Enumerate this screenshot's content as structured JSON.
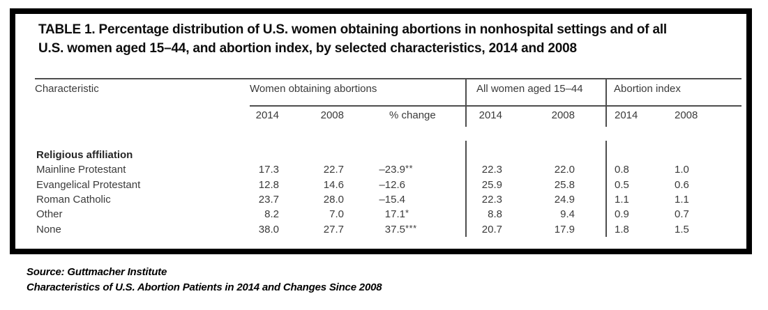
{
  "panel": {
    "title_line1": "TABLE 1. Percentage distribution of U.S. women obtaining abortions in nonhospital settings and of all",
    "title_line2": "U.S. women aged 15–44, and abortion index, by selected characteristics, 2014 and 2008"
  },
  "table": {
    "characteristic_header": "Characteristic",
    "group_headers": {
      "women_obtaining": "Women obtaining abortions",
      "all_women": "All women aged 15–44",
      "abortion_index": "Abortion index"
    },
    "sub_headers": {
      "woa_2014": "2014",
      "woa_2008": "2008",
      "pct_change": "% change",
      "all_2014": "2014",
      "all_2008": "2008",
      "idx_2014": "2014",
      "idx_2008": "2008"
    },
    "section_header": "Religious affiliation",
    "rows": [
      {
        "label": "Mainline Protestant",
        "woa_2014": "17.3",
        "woa_2008": "22.7",
        "pct_change": "–23.9",
        "sig": "**",
        "all_2014": "22.3",
        "all_2008": "22.0",
        "idx_2014": "0.8",
        "idx_2008": "1.0"
      },
      {
        "label": "Evangelical Protestant",
        "woa_2014": "12.8",
        "woa_2008": "14.6",
        "pct_change": "–12.6",
        "sig": "",
        "all_2014": "25.9",
        "all_2008": "25.8",
        "idx_2014": "0.5",
        "idx_2008": "0.6"
      },
      {
        "label": "Roman Catholic",
        "woa_2014": "23.7",
        "woa_2008": "28.0",
        "pct_change": "–15.4",
        "sig": "",
        "all_2014": "22.3",
        "all_2008": "24.9",
        "idx_2014": "1.1",
        "idx_2008": "1.1"
      },
      {
        "label": "Other",
        "woa_2014": "8.2",
        "woa_2008": "7.0",
        "pct_change": "17.1",
        "sig": "*",
        "all_2014": "8.8",
        "all_2008": "9.4",
        "idx_2014": "0.9",
        "idx_2008": "0.7"
      },
      {
        "label": "None",
        "woa_2014": "38.0",
        "woa_2008": "27.7",
        "pct_change": "37.5",
        "sig": "***",
        "all_2014": "20.7",
        "all_2008": "17.9",
        "idx_2014": "1.8",
        "idx_2008": "1.5"
      }
    ]
  },
  "source": {
    "line1": "Source: Guttmacher Institute",
    "line2": "Characteristics of U.S. Abortion Patients in 2014 and Changes Since 2008"
  }
}
